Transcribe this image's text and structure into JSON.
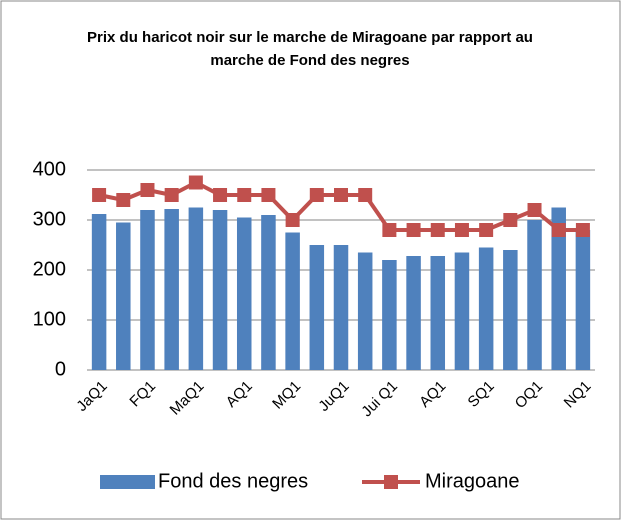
{
  "chart_data": {
    "type": "bar_line",
    "title": "Prix du haricot noir sur le marche de Miragoane par rapport au marche de Fond des negres",
    "categories": [
      "JaQ1",
      null,
      "FQ1",
      null,
      "MaQ1",
      null,
      "AQ1",
      null,
      "MQ1",
      null,
      "JuQ1",
      null,
      "Jui Q1",
      null,
      "AQ1",
      null,
      "SQ1",
      null,
      "OQ1",
      null,
      "NQ1"
    ],
    "series": [
      {
        "name": "Fond des negres",
        "type": "bar",
        "color": "#4f81bd",
        "values": [
          312,
          295,
          320,
          322,
          325,
          320,
          305,
          310,
          275,
          250,
          250,
          235,
          220,
          228,
          228,
          235,
          245,
          240,
          300,
          325,
          280
        ]
      },
      {
        "name": "Miragoane",
        "type": "line",
        "color": "#c0504d",
        "values": [
          350,
          340,
          360,
          350,
          375,
          350,
          350,
          350,
          300,
          350,
          350,
          350,
          280,
          280,
          280,
          280,
          280,
          300,
          320,
          280,
          280
        ]
      }
    ],
    "ylim": [
      0,
      400
    ],
    "yticks": [
      0,
      100,
      200,
      300,
      400
    ],
    "grid": true,
    "legend": "bottom"
  }
}
